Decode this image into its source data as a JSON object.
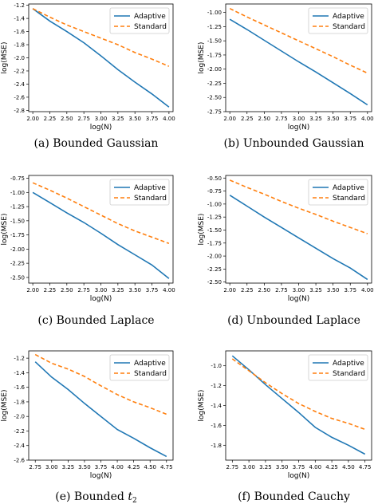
{
  "panels": [
    {
      "id": "a",
      "caption": "(a)  Bounded Gaussian",
      "chart_data": {
        "type": "line",
        "xlabel": "log(N)",
        "ylabel": "log(MSE)",
        "xlim": [
          1.94,
          4.06
        ],
        "ylim": [
          -2.82,
          -1.18
        ],
        "xticks": [
          "2.00",
          "2.25",
          "2.50",
          "2.75",
          "3.00",
          "3.25",
          "3.50",
          "3.75",
          "4.00"
        ],
        "yticks": [
          "-1.2",
          "-1.4",
          "-1.6",
          "-1.8",
          "-2.0",
          "-2.2",
          "-2.4",
          "-2.6",
          "-2.8"
        ],
        "legend_position": "top-right",
        "series": [
          {
            "name": "Adaptive",
            "color": "#1f77b4",
            "style": "solid",
            "x": [
              2.0,
              2.25,
              2.5,
              2.75,
              3.0,
              3.25,
              3.5,
              3.75,
              4.0
            ],
            "y": [
              -1.25,
              -1.44,
              -1.6,
              -1.77,
              -1.97,
              -2.18,
              -2.37,
              -2.55,
              -2.75
            ]
          },
          {
            "name": "Standard",
            "color": "#ff7f0e",
            "style": "dashed",
            "x": [
              2.0,
              2.25,
              2.5,
              2.75,
              3.0,
              3.25,
              3.5,
              3.75,
              4.0
            ],
            "y": [
              -1.25,
              -1.38,
              -1.5,
              -1.6,
              -1.7,
              -1.8,
              -1.92,
              -2.02,
              -2.13
            ]
          }
        ]
      }
    },
    {
      "id": "b",
      "caption": "(b)  Unbounded Gaussian",
      "chart_data": {
        "type": "line",
        "xlabel": "log(N)",
        "ylabel": "log(MSE)",
        "xlim": [
          1.94,
          4.06
        ],
        "ylim": [
          -2.75,
          -0.85
        ],
        "xticks": [
          "2.00",
          "2.25",
          "2.50",
          "2.75",
          "3.00",
          "3.25",
          "3.50",
          "3.75",
          "4.00"
        ],
        "yticks": [
          "-1.00",
          "-1.25",
          "-1.50",
          "-1.75",
          "-2.00",
          "-2.25",
          "-2.50",
          "-2.75"
        ],
        "legend_position": "top-right",
        "series": [
          {
            "name": "Adaptive",
            "color": "#1f77b4",
            "style": "solid",
            "x": [
              2.0,
              2.25,
              2.5,
              2.75,
              3.0,
              3.25,
              3.5,
              3.75,
              4.0
            ],
            "y": [
              -1.12,
              -1.3,
              -1.49,
              -1.68,
              -1.87,
              -2.05,
              -2.24,
              -2.43,
              -2.63
            ]
          },
          {
            "name": "Standard",
            "color": "#ff7f0e",
            "style": "dashed",
            "x": [
              2.0,
              2.25,
              2.5,
              2.75,
              3.0,
              3.25,
              3.5,
              3.75,
              4.0
            ],
            "y": [
              -0.93,
              -1.08,
              -1.22,
              -1.36,
              -1.5,
              -1.64,
              -1.78,
              -1.93,
              -2.07
            ]
          }
        ]
      }
    },
    {
      "id": "c",
      "caption": "(c)  Bounded Laplace",
      "chart_data": {
        "type": "line",
        "xlabel": "log(N)",
        "ylabel": "log(MSE)",
        "xlim": [
          1.94,
          4.06
        ],
        "ylim": [
          -2.6,
          -0.7
        ],
        "xticks": [
          "2.00",
          "2.25",
          "2.50",
          "2.75",
          "3.00",
          "3.25",
          "3.50",
          "3.75",
          "4.00"
        ],
        "yticks": [
          "-0.75",
          "-1.00",
          "-1.25",
          "-1.50",
          "-1.75",
          "-2.00",
          "-2.25",
          "-2.50"
        ],
        "legend_position": "top-right",
        "series": [
          {
            "name": "Adaptive",
            "color": "#1f77b4",
            "style": "solid",
            "x": [
              2.0,
              2.25,
              2.5,
              2.75,
              3.0,
              3.25,
              3.5,
              3.75,
              4.0
            ],
            "y": [
              -1.0,
              -1.18,
              -1.36,
              -1.53,
              -1.72,
              -1.92,
              -2.1,
              -2.28,
              -2.52
            ]
          },
          {
            "name": "Standard",
            "color": "#ff7f0e",
            "style": "dashed",
            "x": [
              2.0,
              2.25,
              2.5,
              2.75,
              3.0,
              3.25,
              3.5,
              3.75,
              4.0
            ],
            "y": [
              -0.83,
              -0.96,
              -1.1,
              -1.25,
              -1.4,
              -1.55,
              -1.68,
              -1.79,
              -1.9
            ]
          }
        ]
      }
    },
    {
      "id": "d",
      "caption": "(d)  Unbounded Laplace",
      "chart_data": {
        "type": "line",
        "xlabel": "log(N)",
        "ylabel": "log(MSE)",
        "xlim": [
          1.94,
          4.06
        ],
        "ylim": [
          -2.52,
          -0.45
        ],
        "xticks": [
          "2.00",
          "2.25",
          "2.50",
          "2.75",
          "3.00",
          "3.25",
          "3.50",
          "3.75",
          "4.00"
        ],
        "yticks": [
          "-0.50",
          "-0.75",
          "-1.00",
          "-1.25",
          "-1.50",
          "-1.75",
          "-2.00",
          "-2.25",
          "-2.50"
        ],
        "legend_position": "top-right",
        "series": [
          {
            "name": "Adaptive",
            "color": "#1f77b4",
            "style": "solid",
            "x": [
              2.0,
              2.25,
              2.5,
              2.75,
              3.0,
              3.25,
              3.5,
              3.75,
              4.0
            ],
            "y": [
              -0.83,
              -1.04,
              -1.25,
              -1.45,
              -1.65,
              -1.85,
              -2.05,
              -2.23,
              -2.45
            ]
          },
          {
            "name": "Standard",
            "color": "#ff7f0e",
            "style": "dashed",
            "x": [
              2.0,
              2.25,
              2.5,
              2.75,
              3.0,
              3.25,
              3.5,
              3.75,
              4.0
            ],
            "y": [
              -0.54,
              -0.68,
              -0.81,
              -0.95,
              -1.08,
              -1.2,
              -1.33,
              -1.45,
              -1.57
            ]
          }
        ]
      }
    },
    {
      "id": "e",
      "caption": "(e)  Bounded ",
      "caption_math": "t",
      "caption_sub": "2",
      "chart_data": {
        "type": "line",
        "xlabel": "log(N)",
        "ylabel": "log(MSE)",
        "xlim": [
          2.65,
          4.85
        ],
        "ylim": [
          -2.6,
          -1.1
        ],
        "xticks": [
          "2.75",
          "3.00",
          "3.25",
          "3.50",
          "3.75",
          "4.00",
          "4.25",
          "4.50",
          "4.75"
        ],
        "yticks": [
          "-1.2",
          "-1.4",
          "-1.6",
          "-1.8",
          "-2.0",
          "-2.2",
          "-2.4",
          "-2.6"
        ],
        "legend_position": "top-right",
        "series": [
          {
            "name": "Adaptive",
            "color": "#1f77b4",
            "style": "solid",
            "x": [
              2.75,
              3.0,
              3.25,
              3.5,
              3.75,
              4.0,
              4.25,
              4.5,
              4.75
            ],
            "y": [
              -1.25,
              -1.46,
              -1.63,
              -1.82,
              -2.0,
              -2.18,
              -2.3,
              -2.43,
              -2.55
            ]
          },
          {
            "name": "Standard",
            "color": "#ff7f0e",
            "style": "dashed",
            "x": [
              2.75,
              3.0,
              3.25,
              3.5,
              3.75,
              4.0,
              4.25,
              4.5,
              4.75
            ],
            "y": [
              -1.15,
              -1.27,
              -1.35,
              -1.45,
              -1.58,
              -1.7,
              -1.8,
              -1.88,
              -1.97
            ]
          }
        ]
      }
    },
    {
      "id": "f",
      "caption": "(f)  Bounded Cauchy",
      "chart_data": {
        "type": "line",
        "xlabel": "log(N)",
        "ylabel": "log(MSE)",
        "xlim": [
          2.65,
          4.85
        ],
        "ylim": [
          -1.95,
          -0.85
        ],
        "xticks": [
          "2.75",
          "3.00",
          "3.25",
          "3.50",
          "3.75",
          "4.00",
          "4.25",
          "4.50",
          "4.75"
        ],
        "yticks": [
          "-1.0",
          "-1.2",
          "-1.4",
          "-1.6",
          "-1.8"
        ],
        "legend_position": "top-right",
        "series": [
          {
            "name": "Adaptive",
            "color": "#1f77b4",
            "style": "solid",
            "x": [
              2.75,
              3.0,
              3.25,
              3.5,
              3.75,
              4.0,
              4.25,
              4.5,
              4.75
            ],
            "y": [
              -0.9,
              -1.04,
              -1.19,
              -1.33,
              -1.47,
              -1.62,
              -1.72,
              -1.8,
              -1.89
            ]
          },
          {
            "name": "Standard",
            "color": "#ff7f0e",
            "style": "dashed",
            "x": [
              2.75,
              3.0,
              3.25,
              3.5,
              3.75,
              4.0,
              4.25,
              4.5,
              4.75
            ],
            "y": [
              -0.93,
              -1.05,
              -1.17,
              -1.28,
              -1.38,
              -1.46,
              -1.53,
              -1.58,
              -1.64
            ]
          }
        ]
      }
    }
  ]
}
